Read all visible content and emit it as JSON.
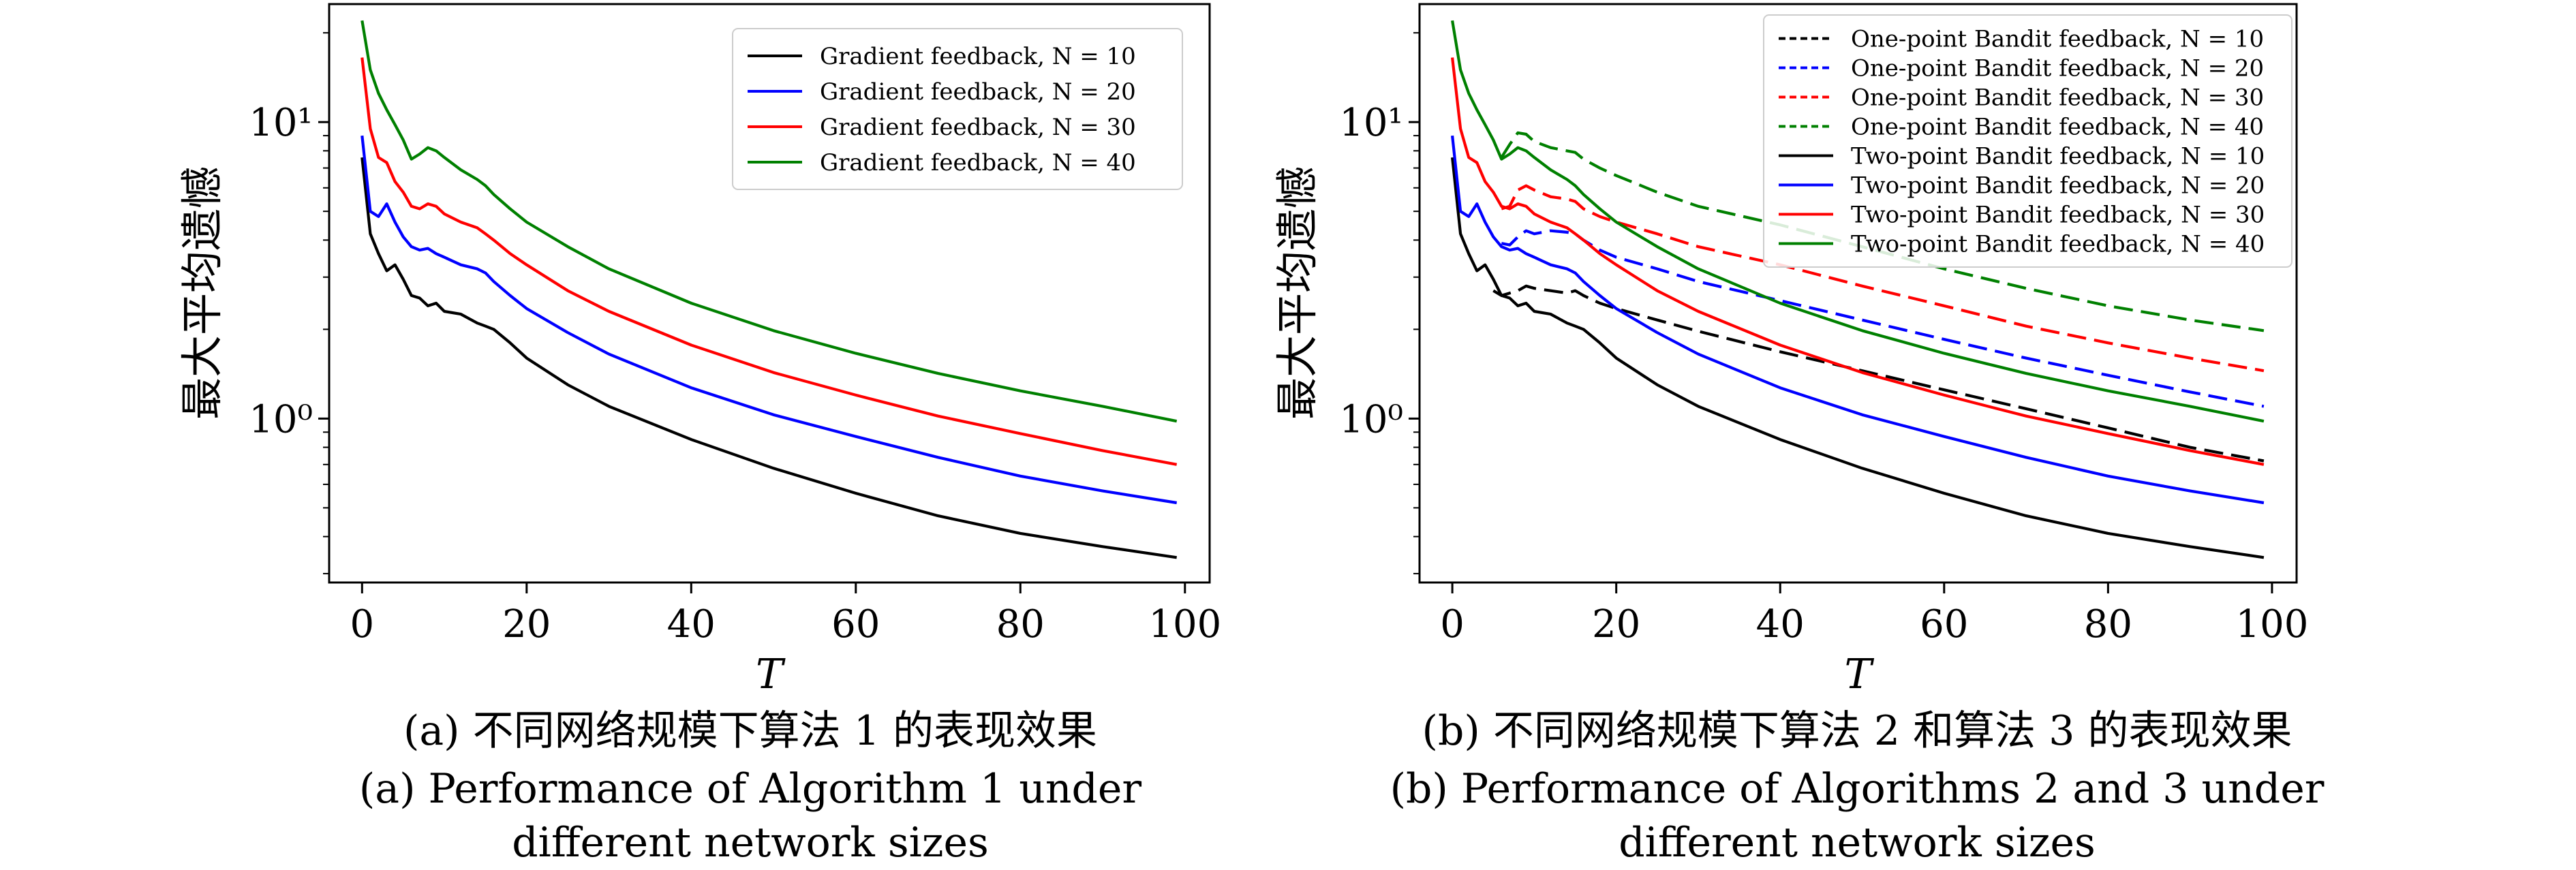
{
  "chart_data": [
    {
      "type": "line",
      "panel": "a",
      "xlabel": "T",
      "ylabel": "最大平均遗憾",
      "yscale": "log",
      "xlim": [
        -4,
        103
      ],
      "ylim": [
        0.28,
        25
      ],
      "xticks": [
        0,
        20,
        40,
        60,
        80,
        100
      ],
      "xtick_labels": [
        "0",
        "20",
        "40",
        "60",
        "80",
        "100"
      ],
      "yticks": [
        1,
        10
      ],
      "ytick_labels": [
        "10⁰",
        "10¹"
      ],
      "legend_position": "top-right",
      "series": [
        {
          "name": "Gradient feedback, N = 10",
          "color": "#000000",
          "dash": "solid",
          "x": [
            0,
            1,
            2,
            3,
            4,
            5,
            6,
            7,
            8,
            9,
            10,
            12,
            14,
            15,
            16,
            18,
            20,
            25,
            30,
            40,
            50,
            60,
            70,
            80,
            90,
            99
          ],
          "y": [
            7.6,
            4.2,
            3.6,
            3.15,
            3.3,
            2.95,
            2.6,
            2.55,
            2.4,
            2.45,
            2.3,
            2.25,
            2.1,
            2.05,
            2.0,
            1.8,
            1.6,
            1.3,
            1.1,
            0.85,
            0.68,
            0.56,
            0.47,
            0.41,
            0.37,
            0.34
          ]
        },
        {
          "name": "Gradient feedback, N = 20",
          "color": "#0000ff",
          "dash": "solid",
          "x": [
            0,
            1,
            2,
            3,
            4,
            5,
            6,
            7,
            8,
            9,
            10,
            12,
            14,
            15,
            16,
            18,
            20,
            25,
            30,
            40,
            50,
            60,
            70,
            80,
            90,
            99
          ],
          "y": [
            9.0,
            5.0,
            4.8,
            5.3,
            4.6,
            4.1,
            3.8,
            3.7,
            3.75,
            3.6,
            3.5,
            3.3,
            3.2,
            3.1,
            2.9,
            2.6,
            2.35,
            1.95,
            1.65,
            1.27,
            1.03,
            0.87,
            0.74,
            0.64,
            0.57,
            0.52
          ]
        },
        {
          "name": "Gradient feedback, N = 30",
          "color": "#ff0000",
          "dash": "solid",
          "x": [
            0,
            1,
            2,
            3,
            4,
            5,
            6,
            7,
            8,
            9,
            10,
            12,
            14,
            15,
            16,
            18,
            20,
            25,
            30,
            40,
            50,
            60,
            70,
            80,
            90,
            99
          ],
          "y": [
            16.5,
            9.5,
            7.6,
            7.3,
            6.3,
            5.8,
            5.2,
            5.1,
            5.3,
            5.2,
            4.9,
            4.6,
            4.4,
            4.2,
            4.0,
            3.6,
            3.3,
            2.7,
            2.3,
            1.77,
            1.43,
            1.2,
            1.02,
            0.89,
            0.78,
            0.7
          ]
        },
        {
          "name": "Gradient feedback, N = 40",
          "color": "#008000",
          "dash": "solid",
          "x": [
            0,
            1,
            2,
            3,
            4,
            5,
            6,
            7,
            8,
            9,
            10,
            12,
            14,
            15,
            16,
            18,
            20,
            25,
            30,
            40,
            50,
            60,
            70,
            80,
            90,
            99
          ],
          "y": [
            22,
            15,
            12.5,
            11,
            9.8,
            8.7,
            7.5,
            7.8,
            8.2,
            8.0,
            7.6,
            6.9,
            6.4,
            6.1,
            5.7,
            5.1,
            4.6,
            3.8,
            3.2,
            2.45,
            1.98,
            1.66,
            1.42,
            1.24,
            1.1,
            0.98
          ]
        }
      ]
    },
    {
      "type": "line",
      "panel": "b",
      "xlabel": "T",
      "ylabel": "最大平均遗憾",
      "yscale": "log",
      "xlim": [
        -4,
        103
      ],
      "ylim": [
        0.28,
        25
      ],
      "xticks": [
        0,
        20,
        40,
        60,
        80,
        100
      ],
      "xtick_labels": [
        "0",
        "20",
        "40",
        "60",
        "80",
        "100"
      ],
      "yticks": [
        1,
        10
      ],
      "ytick_labels": [
        "10⁰",
        "10¹"
      ],
      "legend_position": "top-right",
      "series": [
        {
          "name": "One-point Bandit feedback, N = 10",
          "color": "#000000",
          "dash": "dashed",
          "x": [
            5,
            6,
            7,
            8,
            9,
            10,
            12,
            14,
            15,
            16,
            18,
            20,
            25,
            30,
            40,
            50,
            60,
            70,
            80,
            90,
            99
          ],
          "y": [
            2.7,
            2.6,
            2.65,
            2.7,
            2.8,
            2.75,
            2.7,
            2.65,
            2.7,
            2.6,
            2.45,
            2.35,
            2.15,
            1.97,
            1.68,
            1.45,
            1.25,
            1.08,
            0.93,
            0.8,
            0.72
          ]
        },
        {
          "name": "One-point Bandit feedback, N = 20",
          "color": "#0000ff",
          "dash": "dashed",
          "x": [
            6,
            7,
            8,
            9,
            10,
            12,
            14,
            15,
            16,
            18,
            20,
            25,
            30,
            40,
            50,
            60,
            70,
            80,
            90,
            99
          ],
          "y": [
            3.9,
            3.85,
            4.1,
            4.3,
            4.2,
            4.3,
            4.25,
            4.2,
            4.0,
            3.7,
            3.5,
            3.2,
            2.9,
            2.5,
            2.15,
            1.85,
            1.6,
            1.4,
            1.23,
            1.1
          ]
        },
        {
          "name": "One-point Bandit feedback, N = 30",
          "color": "#ff0000",
          "dash": "dashed",
          "x": [
            6,
            7,
            8,
            9,
            10,
            12,
            14,
            15,
            16,
            18,
            20,
            25,
            30,
            40,
            50,
            60,
            70,
            80,
            90,
            99
          ],
          "y": [
            5.1,
            5.2,
            5.9,
            6.1,
            5.9,
            5.6,
            5.5,
            5.4,
            5.1,
            4.8,
            4.6,
            4.2,
            3.8,
            3.3,
            2.8,
            2.4,
            2.05,
            1.8,
            1.6,
            1.45
          ]
        },
        {
          "name": "One-point Bandit feedback, N = 40",
          "color": "#008000",
          "dash": "dashed",
          "x": [
            6,
            7,
            8,
            9,
            10,
            12,
            14,
            15,
            16,
            18,
            20,
            25,
            30,
            40,
            50,
            60,
            70,
            80,
            90,
            99
          ],
          "y": [
            7.6,
            8.4,
            9.2,
            9.1,
            8.6,
            8.2,
            8.0,
            7.9,
            7.5,
            7.0,
            6.6,
            5.8,
            5.2,
            4.5,
            3.8,
            3.2,
            2.75,
            2.4,
            2.15,
            1.98
          ]
        },
        {
          "name": "Two-point Bandit feedback, N = 10",
          "color": "#000000",
          "dash": "solid",
          "x": [
            0,
            1,
            2,
            3,
            4,
            5,
            6,
            7,
            8,
            9,
            10,
            12,
            14,
            15,
            16,
            18,
            20,
            25,
            30,
            40,
            50,
            60,
            70,
            80,
            90,
            99
          ],
          "y": [
            7.6,
            4.2,
            3.6,
            3.15,
            3.3,
            2.95,
            2.6,
            2.55,
            2.4,
            2.45,
            2.3,
            2.25,
            2.1,
            2.05,
            2.0,
            1.8,
            1.6,
            1.3,
            1.1,
            0.85,
            0.68,
            0.56,
            0.47,
            0.41,
            0.37,
            0.34
          ]
        },
        {
          "name": "Two-point Bandit feedback, N = 20",
          "color": "#0000ff",
          "dash": "solid",
          "x": [
            0,
            1,
            2,
            3,
            4,
            5,
            6,
            7,
            8,
            9,
            10,
            12,
            14,
            15,
            16,
            18,
            20,
            25,
            30,
            40,
            50,
            60,
            70,
            80,
            90,
            99
          ],
          "y": [
            9.0,
            5.0,
            4.8,
            5.3,
            4.6,
            4.1,
            3.8,
            3.7,
            3.75,
            3.6,
            3.5,
            3.3,
            3.2,
            3.1,
            2.9,
            2.6,
            2.35,
            1.95,
            1.65,
            1.27,
            1.03,
            0.87,
            0.74,
            0.64,
            0.57,
            0.52
          ]
        },
        {
          "name": "Two-point Bandit feedback, N = 30",
          "color": "#ff0000",
          "dash": "solid",
          "x": [
            0,
            1,
            2,
            3,
            4,
            5,
            6,
            7,
            8,
            9,
            10,
            12,
            14,
            15,
            16,
            18,
            20,
            25,
            30,
            40,
            50,
            60,
            70,
            80,
            90,
            99
          ],
          "y": [
            16.5,
            9.5,
            7.6,
            7.3,
            6.3,
            5.8,
            5.2,
            5.1,
            5.3,
            5.2,
            4.9,
            4.6,
            4.4,
            4.2,
            4.0,
            3.6,
            3.3,
            2.7,
            2.3,
            1.77,
            1.43,
            1.2,
            1.02,
            0.89,
            0.78,
            0.7
          ]
        },
        {
          "name": "Two-point Bandit feedback, N = 40",
          "color": "#008000",
          "dash": "solid",
          "x": [
            0,
            1,
            2,
            3,
            4,
            5,
            6,
            7,
            8,
            9,
            10,
            12,
            14,
            15,
            16,
            18,
            20,
            25,
            30,
            40,
            50,
            60,
            70,
            80,
            90,
            99
          ],
          "y": [
            22,
            15,
            12.5,
            11,
            9.8,
            8.7,
            7.5,
            7.8,
            8.2,
            8.0,
            7.6,
            6.9,
            6.4,
            6.1,
            5.7,
            5.1,
            4.6,
            3.8,
            3.2,
            2.45,
            1.98,
            1.66,
            1.42,
            1.24,
            1.1,
            0.98
          ]
        }
      ]
    }
  ],
  "captions": {
    "a_zh": "(a) 不同网络规模下算法 1 的表现效果",
    "a_en_line1": "(a) Performance of Algorithm 1 under",
    "a_en_line2": "different network sizes",
    "b_zh": "(b) 不同网络规模下算法 2 和算法 3 的表现效果",
    "b_en_line1": "(b) Performance of Algorithms 2 and 3 under",
    "b_en_line2": "different network sizes"
  }
}
